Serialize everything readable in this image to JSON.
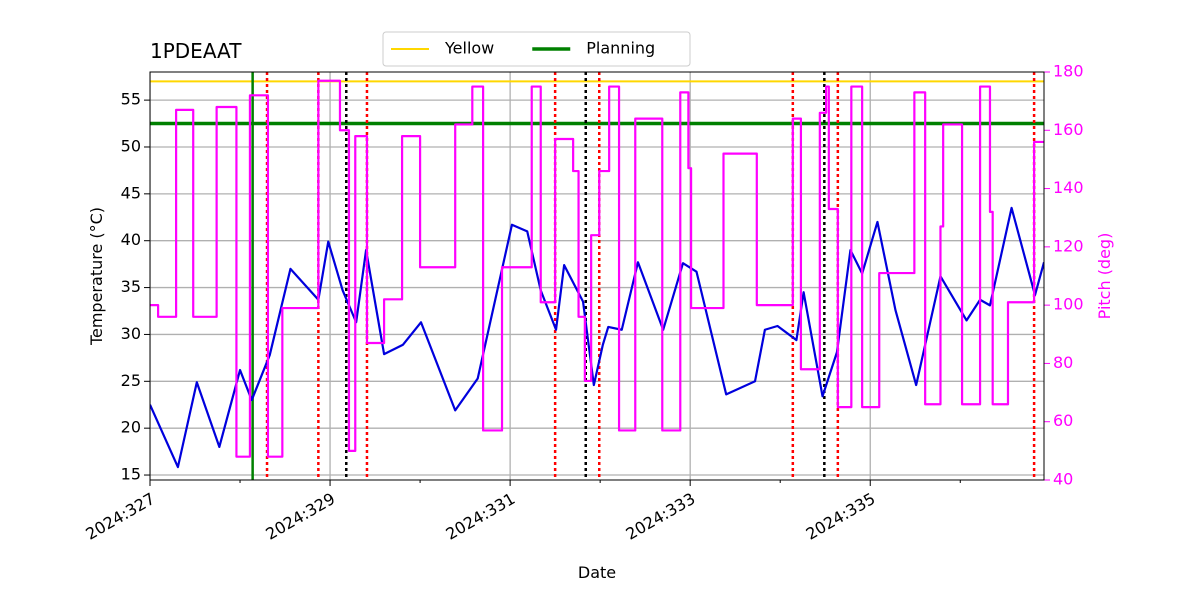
{
  "chart_data": {
    "type": "line",
    "title": "1PDEAAT",
    "xlabel": "Date",
    "ylabel": "Temperature (°C)",
    "y2label": "Pitch (deg)",
    "y2color": "#ff00ff",
    "xlim": [
      327,
      336.93
    ],
    "ylim": [
      14.47,
      58
    ],
    "y2lim": [
      40,
      180
    ],
    "xticks": [
      {
        "value": 327,
        "label": "2024:327"
      },
      {
        "value": 329,
        "label": "2024:329"
      },
      {
        "value": 331,
        "label": "2024:331"
      },
      {
        "value": 333,
        "label": "2024:333"
      },
      {
        "value": 335,
        "label": "2024:335"
      }
    ],
    "xminorticks": [
      328,
      330,
      332,
      334,
      336
    ],
    "yticks": [
      15,
      20,
      25,
      30,
      35,
      40,
      45,
      50,
      55
    ],
    "y2ticks": [
      40,
      60,
      80,
      100,
      120,
      140,
      160,
      180
    ],
    "grid": true,
    "legend": "upper center",
    "hlines": [
      {
        "name": "Yellow",
        "value": 57,
        "color": "#ffd700"
      },
      {
        "name": "Planning",
        "value": 52.5,
        "color": "#008000"
      }
    ],
    "vlines": [
      {
        "color": "#008000",
        "style": "solid",
        "x": [
          328.14
        ]
      },
      {
        "color": "#ff0000",
        "style": "dotted",
        "x": [
          328.3,
          328.87,
          329.41,
          331.5,
          331.99,
          334.14,
          334.64,
          336.82
        ]
      },
      {
        "color": "#000000",
        "style": "dotted",
        "x": [
          329.18,
          331.84,
          334.49
        ]
      }
    ],
    "series": [
      {
        "color": "#0000dd",
        "drawstyle": "default",
        "x": [
          327.0,
          327.31,
          327.52,
          327.77,
          328.0,
          328.13,
          328.33,
          328.56,
          328.87,
          328.98,
          329.14,
          329.29,
          329.4,
          329.6,
          329.81,
          330.01,
          330.39,
          330.64,
          331.02,
          331.19,
          331.34,
          331.51,
          331.6,
          331.81,
          331.93,
          332.03,
          332.09,
          332.24,
          332.42,
          332.7,
          332.92,
          333.07,
          333.4,
          333.72,
          333.83,
          333.97,
          334.18,
          334.26,
          334.47,
          334.63,
          334.78,
          334.91,
          335.08,
          335.28,
          335.51,
          335.78,
          336.07,
          336.22,
          336.33,
          336.57,
          336.83,
          336.93
        ],
        "values": [
          22.5,
          15.85,
          24.9,
          18,
          26.2,
          23,
          27.8,
          37,
          33.7,
          39.9,
          34.7,
          31.3,
          39,
          27.9,
          28.9,
          31.3,
          21.9,
          25.3,
          41.7,
          41,
          34.7,
          30.5,
          37.4,
          33.5,
          24.6,
          28.9,
          30.8,
          30.5,
          37.7,
          30.5,
          37.6,
          36.7,
          23.6,
          25,
          30.5,
          30.9,
          29.4,
          34.5,
          23.4,
          28.1,
          39,
          36.5,
          42,
          32.6,
          24.6,
          36.2,
          31.5,
          33.7,
          33.1,
          43.5,
          34.2,
          37.7
        ]
      },
      {
        "color": "#ff00ff",
        "axis": "y2",
        "drawstyle": "steps-post",
        "x": [
          327.0,
          327.09,
          327.29,
          327.48,
          327.74,
          327.96,
          328.11,
          328.31,
          328.47,
          328.87,
          329.11,
          329.21,
          329.28,
          329.41,
          329.6,
          329.8,
          330.0,
          330.39,
          330.58,
          330.7,
          330.91,
          331.24,
          331.34,
          331.5,
          331.7,
          331.76,
          331.83,
          331.9,
          331.99,
          332.1,
          332.21,
          332.39,
          332.69,
          332.89,
          332.98,
          333.01,
          333.37,
          333.74,
          334.14,
          334.23,
          334.44,
          334.51,
          334.54,
          334.64,
          334.79,
          334.91,
          335.1,
          335.49,
          335.61,
          335.78,
          335.81,
          336.02,
          336.22,
          336.33,
          336.36,
          336.53,
          336.82,
          336.93
        ],
        "values": [
          100,
          96,
          167,
          96,
          168,
          48,
          172,
          48,
          99,
          177,
          160,
          50,
          158,
          87,
          102,
          158,
          113,
          162,
          175,
          57,
          113,
          175,
          101,
          157,
          146,
          96,
          74,
          124,
          146,
          175,
          57,
          164,
          57,
          173,
          147,
          99,
          152,
          100,
          164,
          78,
          166,
          175,
          133,
          65,
          175,
          65,
          111,
          173,
          66,
          127,
          162,
          66,
          175,
          132,
          66,
          101,
          156,
          156
        ]
      }
    ]
  }
}
